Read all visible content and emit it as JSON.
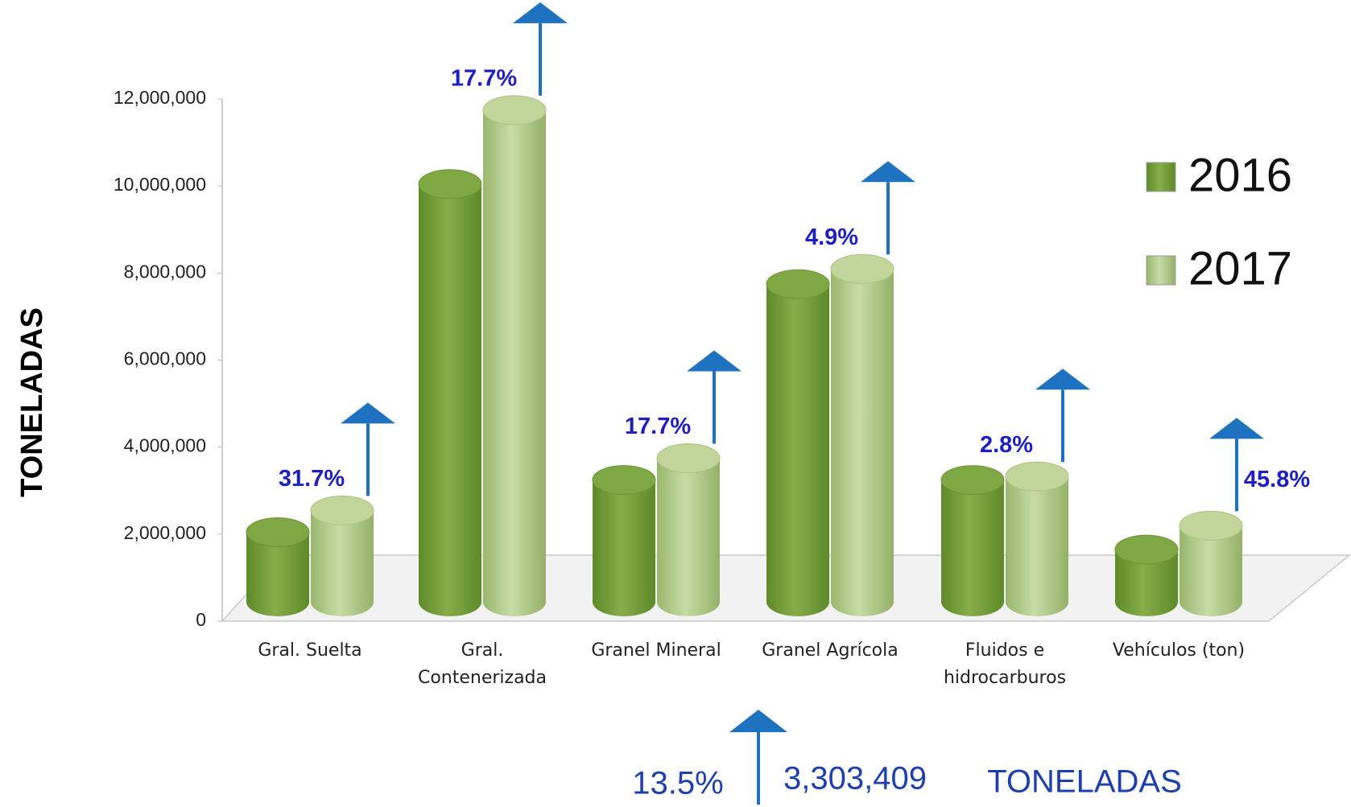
{
  "chart_data": {
    "type": "bar",
    "ylabel": "TONELADAS",
    "categories": [
      "Gral. Suelta",
      "Gral. Contenerizada",
      "Granel Mineral",
      "Granel Agrícola",
      "Fluidos e hidrocarburos",
      "Vehículos (ton)"
    ],
    "series": [
      {
        "name": "2016",
        "color": "#76a03a",
        "values": [
          1600000,
          9600000,
          2800000,
          7300000,
          2800000,
          1200000
        ]
      },
      {
        "name": "2017",
        "color": "#b3cb8a",
        "values": [
          2100000,
          11300000,
          3300000,
          7650000,
          2880000,
          1750000
        ]
      }
    ],
    "growth_labels": [
      "31.7%",
      "17.7%",
      "17.7%",
      "4.9%",
      "2.8%",
      "45.8%"
    ],
    "ylim": [
      0,
      12000000
    ],
    "yticks": [
      0,
      {
        "value": 2000000,
        "label": "2,000,000"
      },
      {
        "value": 4000000,
        "label": "4,000,000"
      },
      {
        "value": 6000000,
        "label": "6,000,000"
      },
      {
        "value": 8000000,
        "label": "8,000,000"
      },
      {
        "value": 10000000,
        "label": "10,000,000"
      },
      {
        "value": 12000000,
        "label": "12,000,000"
      }
    ],
    "summary": {
      "change": "13.5%",
      "total": "3,303,409",
      "unit": "TONELADAS"
    }
  }
}
